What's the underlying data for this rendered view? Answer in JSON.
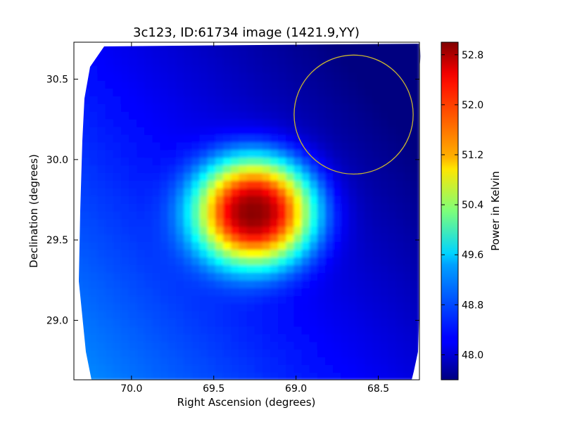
{
  "chart_data": {
    "type": "heatmap",
    "title": "3c123, ID:61734 image (1421.9,YY)",
    "xlabel": "Right Ascension (degrees)",
    "ylabel": "Declination (degrees)",
    "xlim": [
      70.35,
      68.25
    ],
    "ylim": [
      28.63,
      30.73
    ],
    "x_ticks": [
      {
        "value": 70.0,
        "label": "70.0"
      },
      {
        "value": 69.5,
        "label": "69.5"
      },
      {
        "value": 69.0,
        "label": "69.0"
      },
      {
        "value": 68.5,
        "label": "68.5"
      }
    ],
    "y_ticks": [
      {
        "value": 29.0,
        "label": "29.0"
      },
      {
        "value": 29.5,
        "label": "29.5"
      },
      {
        "value": 30.0,
        "label": "30.0"
      },
      {
        "value": 30.5,
        "label": "30.5"
      }
    ],
    "colorbar": {
      "label": "Power in Kelvin",
      "range": [
        47.6,
        53.0
      ],
      "ticks": [
        {
          "value": 48.0,
          "label": "48.0"
        },
        {
          "value": 48.8,
          "label": "48.8"
        },
        {
          "value": 49.6,
          "label": "49.6"
        },
        {
          "value": 50.4,
          "label": "50.4"
        },
        {
          "value": 51.2,
          "label": "51.2"
        },
        {
          "value": 52.0,
          "label": "52.0"
        },
        {
          "value": 52.8,
          "label": "52.8"
        }
      ],
      "colormap": "jet"
    },
    "source": {
      "ra": 69.25,
      "dec": 29.68,
      "peak": 52.95,
      "background": 48.2
    },
    "circle": {
      "center_ra": 68.65,
      "center_dec": 30.28,
      "radius_deg": 0.37,
      "color": "#c8b432"
    },
    "grid": false
  }
}
